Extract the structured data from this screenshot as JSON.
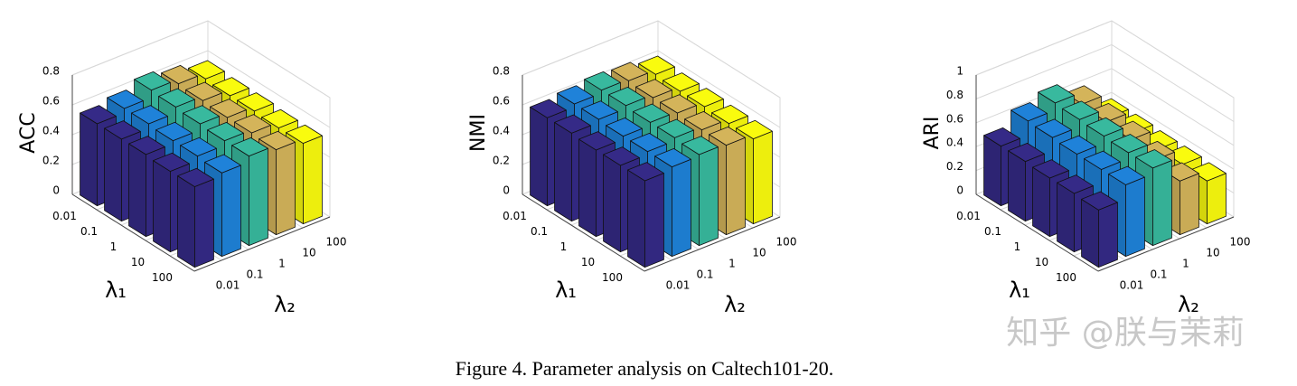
{
  "chart_data": [
    {
      "type": "bar3d",
      "zlabel": "ACC",
      "xlabel": "λ₁",
      "ylabel": "λ₂",
      "x_categories": [
        "0.01",
        "0.1",
        "1",
        "10",
        "100"
      ],
      "y_categories": [
        "0.01",
        "0.1",
        "1",
        "10",
        "100"
      ],
      "colors": [
        "#352a87",
        "#1f82d9",
        "#38b99e",
        "#d4b45a",
        "#f9fb0e"
      ],
      "values": [
        [
          0.55,
          0.58,
          0.63,
          0.6,
          0.56
        ],
        [
          0.55,
          0.58,
          0.62,
          0.59,
          0.55
        ],
        [
          0.55,
          0.57,
          0.61,
          0.58,
          0.55
        ],
        [
          0.54,
          0.57,
          0.6,
          0.58,
          0.54
        ],
        [
          0.54,
          0.56,
          0.6,
          0.57,
          0.54
        ]
      ],
      "zlim": [
        0,
        0.8
      ],
      "zticks": [
        0,
        0.2,
        0.4,
        0.6,
        0.8
      ],
      "grid": true
    },
    {
      "type": "bar3d",
      "zlabel": "NMI",
      "xlabel": "λ₁",
      "ylabel": "λ₂",
      "x_categories": [
        "0.01",
        "0.1",
        "1",
        "10",
        "100"
      ],
      "y_categories": [
        "0.01",
        "0.1",
        "1",
        "10",
        "100"
      ],
      "colors": [
        "#352a87",
        "#1f82d9",
        "#38b99e",
        "#d4b45a",
        "#f9fb0e"
      ],
      "values": [
        [
          0.59,
          0.61,
          0.63,
          0.62,
          0.59
        ],
        [
          0.59,
          0.61,
          0.63,
          0.61,
          0.58
        ],
        [
          0.58,
          0.6,
          0.62,
          0.61,
          0.58
        ],
        [
          0.58,
          0.6,
          0.62,
          0.6,
          0.57
        ],
        [
          0.58,
          0.6,
          0.61,
          0.6,
          0.57
        ]
      ],
      "zlim": [
        0,
        0.8
      ],
      "zticks": [
        0,
        0.2,
        0.4,
        0.6,
        0.8
      ],
      "grid": true
    },
    {
      "type": "bar3d",
      "zlabel": "ARI",
      "xlabel": "λ₁",
      "ylabel": "λ₂",
      "x_categories": [
        "0.01",
        "0.1",
        "1",
        "10",
        "100"
      ],
      "y_categories": [
        "0.01",
        "0.1",
        "1",
        "10",
        "100"
      ],
      "colors": [
        "#352a87",
        "#1f82d9",
        "#38b99e",
        "#d4b45a",
        "#f9fb0e"
      ],
      "values": [
        [
          0.5,
          0.62,
          0.68,
          0.58,
          0.38
        ],
        [
          0.5,
          0.61,
          0.67,
          0.56,
          0.38
        ],
        [
          0.49,
          0.6,
          0.66,
          0.54,
          0.37
        ],
        [
          0.49,
          0.6,
          0.65,
          0.5,
          0.37
        ],
        [
          0.48,
          0.6,
          0.65,
          0.45,
          0.36
        ]
      ],
      "zlim": [
        0,
        1
      ],
      "zticks": [
        0,
        0.2,
        0.4,
        0.6,
        0.8,
        1
      ],
      "grid": true
    }
  ],
  "caption": "Figure 4. Parameter analysis on Caltech101-20.",
  "watermark": "知乎 @朕与茉莉"
}
